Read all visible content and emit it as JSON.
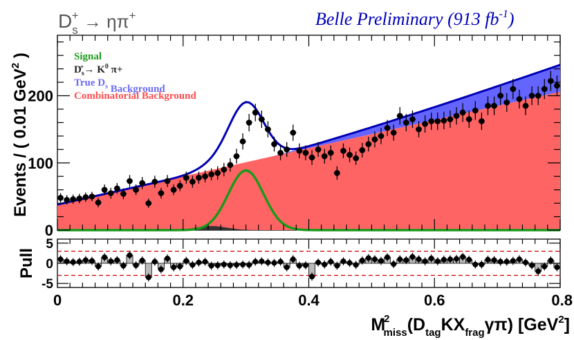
{
  "chart_data": {
    "type": "histogram_fit",
    "title": "D_s^+ → ηπ^+",
    "title_main": "D",
    "title_sub": "s",
    "title_sup": "+",
    "title_rest": " → ηπ",
    "title_rest_sup": "+",
    "experiment_label": "Belle Preliminary (913 fb",
    "experiment_sup": "-1",
    "experiment_close": ")",
    "ylabel_main": "Events / ( 0.01 GeV",
    "ylabel_sup": "2",
    "ylabel_close": " )",
    "pull_label": "Pull",
    "xlabel_parts": {
      "m": "M",
      "m_sup": "2",
      "m_sub": "miss",
      "open": "(D",
      "d_sub": "tag",
      "mid": "KX",
      "x_sub": "frag",
      "end": "γπ) [GeV",
      "gev_sup": "2",
      "close": "]"
    },
    "xlim": [
      0.0,
      0.8
    ],
    "ylim": [
      0,
      290
    ],
    "pull_ylim": [
      -6,
      6
    ],
    "x_ticks": [
      "0",
      "0.2",
      "0.4",
      "0.6",
      "0.8"
    ],
    "x_tick_values": [
      0.0,
      0.2,
      0.4,
      0.6,
      0.8
    ],
    "y_ticks": [
      "0",
      "100",
      "200"
    ],
    "y_tick_values": [
      0,
      100,
      200
    ],
    "pull_ticks": [
      "5",
      "0",
      "-5"
    ],
    "pull_tick_values": [
      5,
      0,
      -5
    ],
    "pull_reference_lines": [
      3,
      -3
    ],
    "legend": [
      {
        "label_main": "Signal",
        "label_sub": "",
        "label_sup": "",
        "label_rest": "",
        "label_rest_sup": "",
        "label_tail": "",
        "color": "#1a9a1a"
      },
      {
        "label_main": "D",
        "label_sub": "s",
        "label_sup": "+",
        "label_rest": "→ K",
        "label_rest_sup": "0",
        "label_tail": " π+",
        "color": "#222222"
      },
      {
        "label_main": "True D",
        "label_sub": "s",
        "label_sup": "",
        "label_rest": " Background",
        "label_rest_sup": "",
        "label_tail": "",
        "color": "#6b6bf5"
      },
      {
        "label_main": "Combinatorial Background",
        "label_sub": "",
        "label_sup": "",
        "label_rest": "",
        "label_rest_sup": "",
        "label_tail": "",
        "color": "#ff4c4c"
      }
    ],
    "colors": {
      "combinatorial": "#ff6464",
      "true_ds": "#6464ff",
      "kzero_bkg": "#333333",
      "signal": "#1a9a1a",
      "total_fit": "#0000b4",
      "points": "#000000",
      "pull_bar": "#bbbbbb",
      "pull_ref": "#cc0000",
      "title": "#555555",
      "experiment": "#0000bb"
    },
    "bin_width": 0.01,
    "bin_centers": [
      0.005,
      0.015,
      0.025,
      0.035,
      0.045,
      0.055,
      0.065,
      0.075,
      0.085,
      0.095,
      0.105,
      0.115,
      0.125,
      0.135,
      0.145,
      0.155,
      0.165,
      0.175,
      0.185,
      0.195,
      0.205,
      0.215,
      0.225,
      0.235,
      0.245,
      0.255,
      0.265,
      0.275,
      0.285,
      0.295,
      0.305,
      0.315,
      0.325,
      0.335,
      0.345,
      0.355,
      0.365,
      0.375,
      0.385,
      0.395,
      0.405,
      0.415,
      0.425,
      0.435,
      0.445,
      0.455,
      0.465,
      0.475,
      0.485,
      0.495,
      0.505,
      0.515,
      0.525,
      0.535,
      0.545,
      0.555,
      0.565,
      0.575,
      0.585,
      0.595,
      0.605,
      0.615,
      0.625,
      0.635,
      0.645,
      0.655,
      0.665,
      0.675,
      0.685,
      0.695,
      0.705,
      0.715,
      0.725,
      0.735,
      0.745,
      0.755,
      0.765,
      0.775,
      0.785,
      0.795
    ],
    "events": [
      48,
      45,
      46,
      47,
      49,
      50,
      41,
      60,
      55,
      62,
      54,
      73,
      60,
      70,
      40,
      72,
      55,
      73,
      60,
      66,
      78,
      72,
      78,
      80,
      83,
      85,
      90,
      97,
      110,
      132,
      160,
      175,
      165,
      150,
      128,
      115,
      120,
      145,
      118,
      115,
      108,
      120,
      110,
      115,
      85,
      118,
      112,
      107,
      119,
      128,
      135,
      140,
      152,
      145,
      170,
      160,
      165,
      150,
      158,
      162,
      162,
      163,
      165,
      170,
      175,
      165,
      178,
      162,
      185,
      185,
      200,
      190,
      210,
      195,
      185,
      200,
      200,
      210,
      222,
      215
    ],
    "errors": [
      7,
      7,
      7,
      7,
      7,
      7,
      7,
      8,
      8,
      8,
      8,
      9,
      8,
      9,
      7,
      9,
      8,
      9,
      8,
      8,
      9,
      9,
      9,
      9,
      9,
      10,
      10,
      10,
      11,
      12,
      13,
      13,
      13,
      12,
      11,
      11,
      11,
      12,
      11,
      11,
      11,
      11,
      11,
      11,
      10,
      11,
      11,
      10,
      11,
      11,
      12,
      12,
      12,
      12,
      13,
      13,
      13,
      12,
      13,
      13,
      13,
      13,
      13,
      13,
      14,
      13,
      14,
      13,
      14,
      14,
      14,
      14,
      15,
      14,
      14,
      14,
      14,
      15,
      15,
      15
    ],
    "pulls": [
      1.0,
      0.5,
      0.3,
      0.4,
      0.8,
      0.6,
      -0.8,
      1.5,
      0.5,
      0.8,
      -0.6,
      2.0,
      -0.5,
      0.7,
      -3.5,
      0.4,
      -1.5,
      1.2,
      -1.0,
      -0.8,
      0.6,
      -0.4,
      0.2,
      0.4,
      -0.6,
      -0.5,
      -0.3,
      -0.5,
      -0.4,
      -0.3,
      -0.4,
      0.4,
      0.5,
      0.2,
      0.1,
      0.4,
      -1.0,
      1.0,
      -0.6,
      -0.5,
      -3.3,
      0.2,
      -0.3,
      0.4,
      -0.6,
      0.5,
      0.1,
      -0.4,
      0.7,
      1.3,
      1.0,
      0.6,
      1.5,
      -0.2,
      1.0,
      0.8,
      1.6,
      1.0,
      0.5,
      1.2,
      0.5,
      0.9,
      1.0,
      1.1,
      1.6,
      0.9,
      -0.3,
      -0.3,
      0.9,
      0.8,
      0.4,
      0.4,
      0.6,
      1.0,
      0.2,
      -0.5,
      -2.0,
      -0.8,
      0.7,
      -1.0
    ]
  }
}
